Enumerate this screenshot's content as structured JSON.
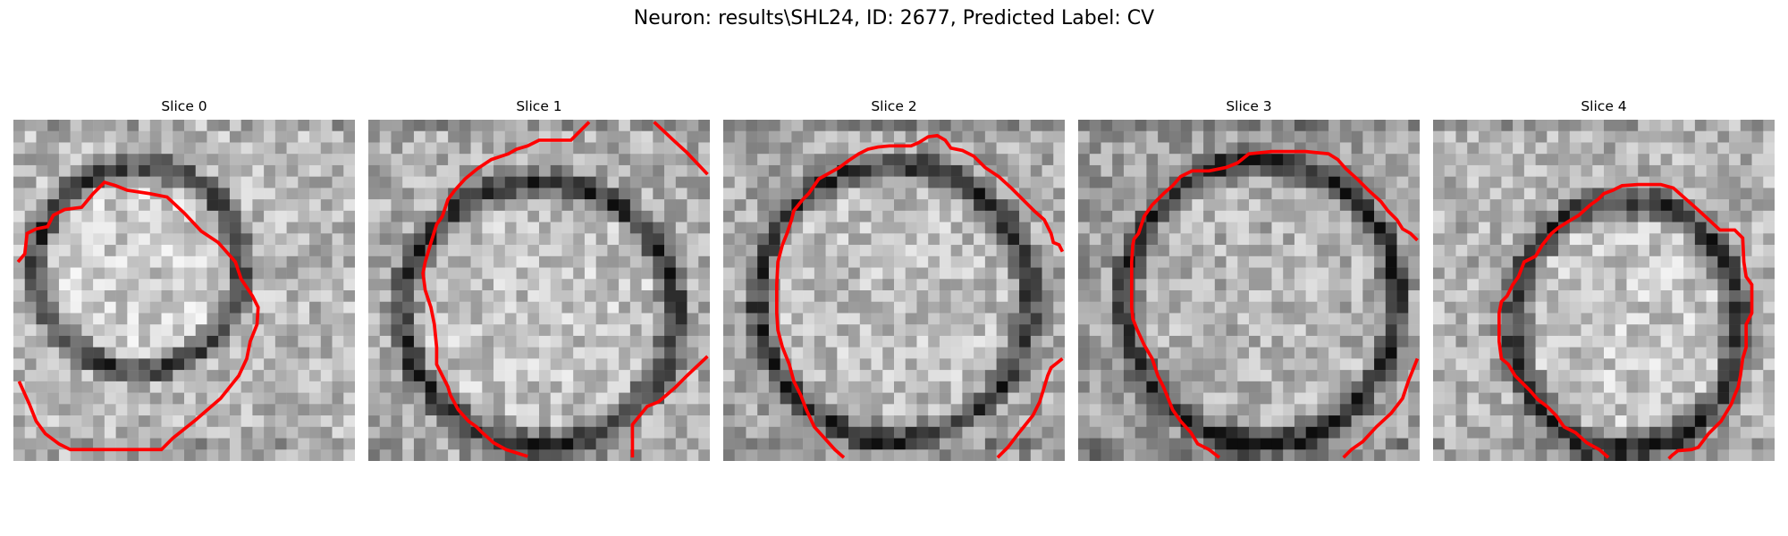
{
  "figure": {
    "title": "Neuron: results\\SHL24, ID: 2677, Predicted Label: CV"
  },
  "panels": [
    {
      "title": "Slice 0",
      "image_desc": "grayscale microscopy slice with red contour outline",
      "contour_color": "#ff0000"
    },
    {
      "title": "Slice 1",
      "image_desc": "grayscale microscopy slice with red contour outline",
      "contour_color": "#ff0000"
    },
    {
      "title": "Slice 2",
      "image_desc": "grayscale microscopy slice with red contour outline",
      "contour_color": "#ff0000"
    },
    {
      "title": "Slice 3",
      "image_desc": "grayscale microscopy slice with red contour outline",
      "contour_color": "#ff0000"
    },
    {
      "title": "Slice 4",
      "image_desc": "grayscale microscopy slice with red contour outline",
      "contour_color": "#ff0000"
    }
  ]
}
